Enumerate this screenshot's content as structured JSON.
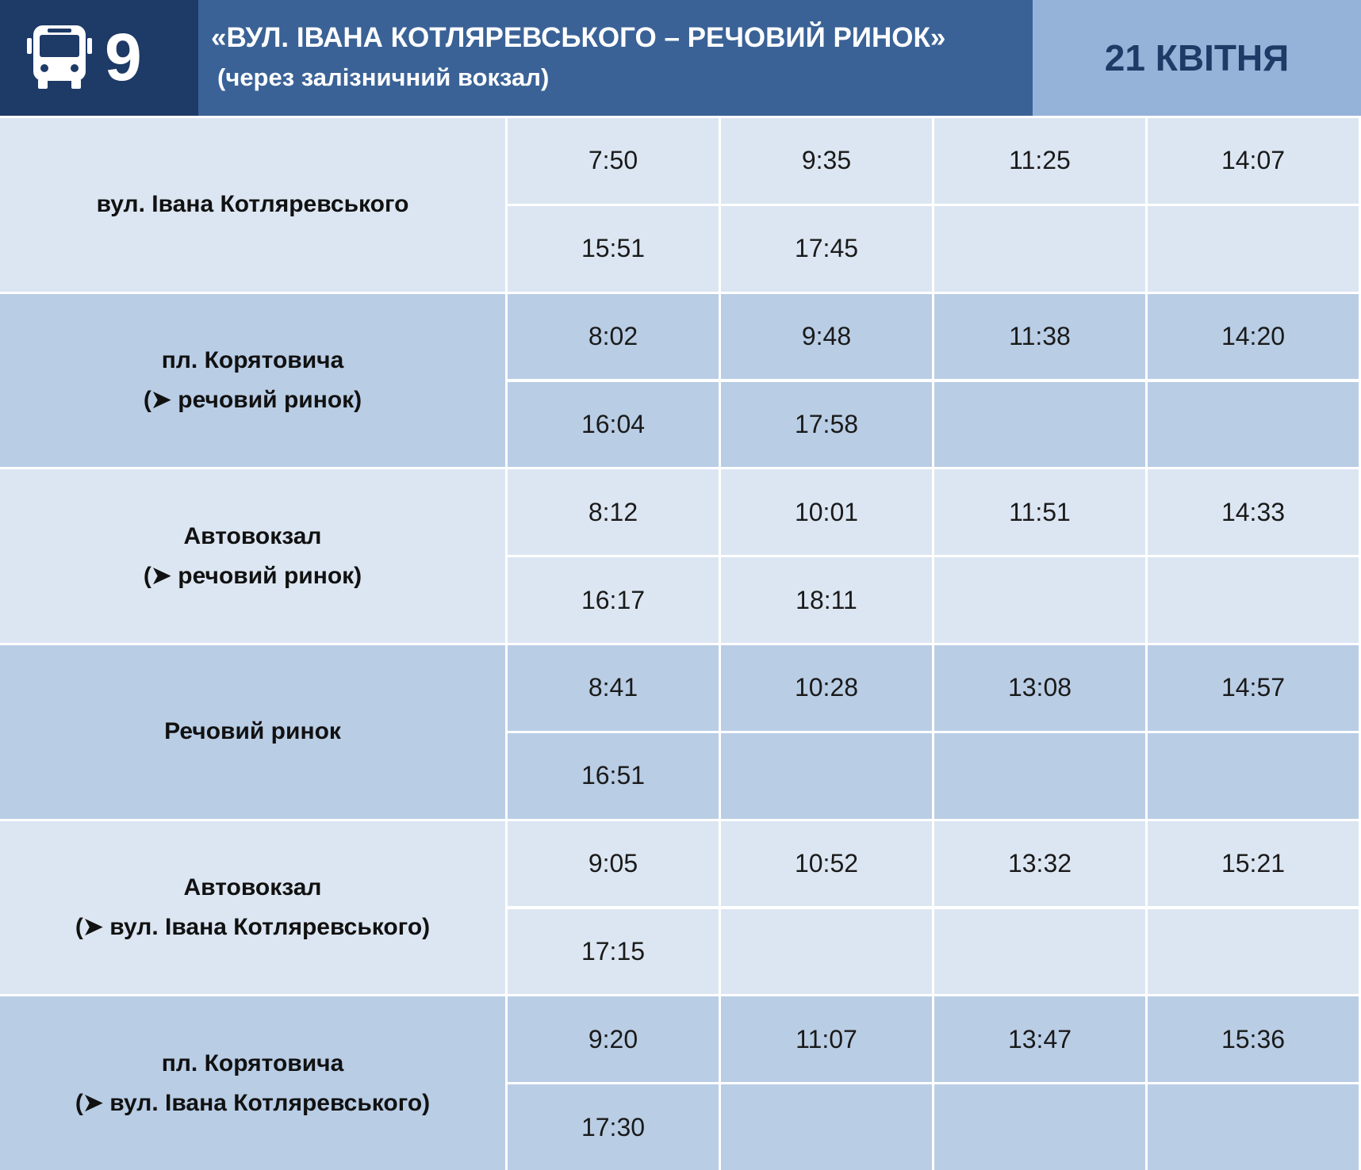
{
  "header": {
    "route_number": "9",
    "title": "«ВУЛ. ІВАНА КОТЛЯРЕВСЬКОГО – РЕЧОВИЙ РИНОК»",
    "subtitle": "(через залізничний вокзал)",
    "date": "21 КВІТНЯ"
  },
  "table": {
    "rows": [
      {
        "stop": [
          "вул. Івана Котляревського"
        ],
        "times": [
          [
            "7:50",
            "9:35",
            "11:25",
            "14:07"
          ],
          [
            "15:51",
            "17:45"
          ]
        ]
      },
      {
        "stop": [
          "пл. Корятовича",
          "(➤ речовий ринок)"
        ],
        "times": [
          [
            "8:02",
            "9:48",
            "11:38",
            "14:20"
          ],
          [
            "16:04",
            "17:58"
          ]
        ]
      },
      {
        "stop": [
          "Автовокзал",
          "(➤ речовий ринок)"
        ],
        "times": [
          [
            "8:12",
            "10:01",
            "11:51",
            "14:33"
          ],
          [
            "16:17",
            "18:11"
          ]
        ]
      },
      {
        "stop": [
          "Речовий ринок"
        ],
        "times": [
          [
            "8:41",
            "10:28",
            "13:08",
            "14:57"
          ],
          [
            "16:51"
          ]
        ]
      },
      {
        "stop": [
          "Автовокзал",
          "(➤ вул. Івана Котляревського)"
        ],
        "times": [
          [
            "9:05",
            "10:52",
            "13:32",
            "15:21"
          ],
          [
            "17:15"
          ]
        ]
      },
      {
        "stop": [
          "пл. Корятовича",
          "(➤ вул. Івана Котляревського)"
        ],
        "times": [
          [
            "9:20",
            "11:07",
            "13:47",
            "15:36"
          ],
          [
            "17:30"
          ]
        ]
      }
    ]
  }
}
